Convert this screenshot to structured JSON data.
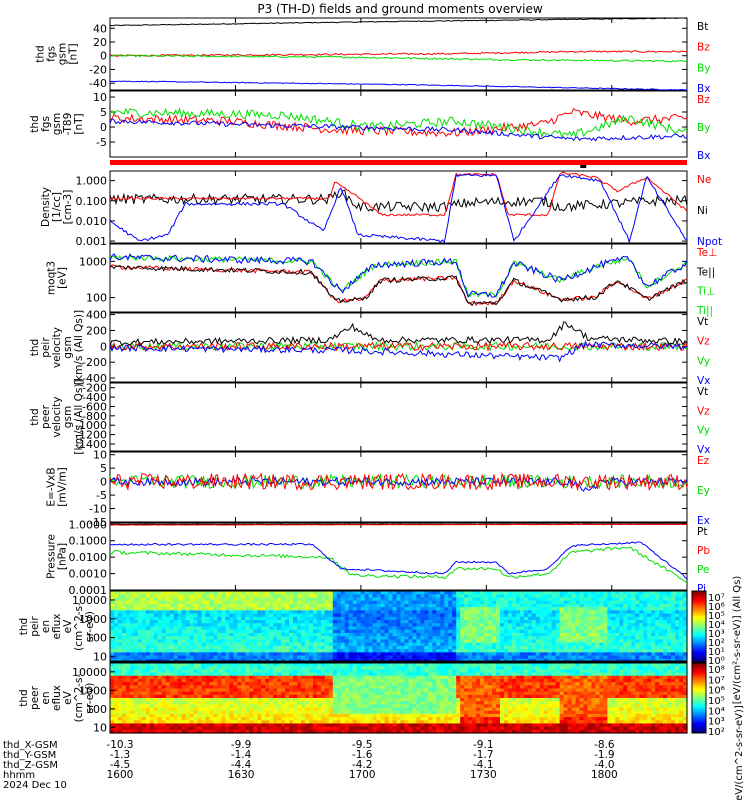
{
  "title": "P3 (TH-D) fields and ground moments overview",
  "colors": {
    "black": "#000000",
    "red": "#ff0000",
    "green": "#00e000",
    "blue": "#0000ff",
    "blue_dark": "#0000cc",
    "status_bar": "#ff0000"
  },
  "panels": [
    {
      "id": "fgs",
      "ylabel": [
        "thd",
        "fgs",
        "gsm",
        "[nT]"
      ],
      "ylim": [
        -50,
        55
      ],
      "ticks": [
        {
          "v": 40,
          "t": "40"
        },
        {
          "v": 20,
          "t": "20"
        },
        {
          "v": 0,
          "t": "0"
        },
        {
          "v": -20,
          "t": "-20"
        },
        {
          "v": -40,
          "t": "-40"
        }
      ],
      "legend": [
        {
          "t": "Bt",
          "c": "black"
        },
        {
          "t": "Bz",
          "c": "red"
        },
        {
          "t": "By",
          "c": "green"
        },
        {
          "t": "Bx",
          "c": "blue"
        }
      ]
    },
    {
      "id": "fgs_dc",
      "ylabel": [
        "thd",
        "fgs",
        "gsm",
        "-T89",
        "[nT]"
      ],
      "ylim": [
        -10,
        12
      ],
      "ticks": [
        {
          "v": 10,
          "t": "10"
        },
        {
          "v": 5,
          "t": "5"
        },
        {
          "v": 0,
          "t": "0"
        },
        {
          "v": -5,
          "t": "-5"
        }
      ],
      "legend": [
        {
          "t": "Bz",
          "c": "red"
        },
        {
          "t": "By",
          "c": "green"
        },
        {
          "t": "Bx",
          "c": "blue"
        }
      ]
    },
    {
      "id": "density",
      "ylabel": [
        "Density",
        "[1/cc]",
        "[cm-3]"
      ],
      "ylim_log": [
        0.0008,
        3
      ],
      "ticks": [
        {
          "v": 1,
          "t": "1.000"
        },
        {
          "v": 0.1,
          "t": "0.100"
        },
        {
          "v": 0.01,
          "t": "0.010"
        },
        {
          "v": 0.001,
          "t": "0.001"
        }
      ],
      "legend": [
        {
          "t": "Ne",
          "c": "red"
        },
        {
          "t": "Ni",
          "c": "black"
        },
        {
          "t": "Npot",
          "c": "blue"
        }
      ]
    },
    {
      "id": "temperature",
      "ylabel": [
        "moqt3",
        "[eV]"
      ],
      "ylim_log": [
        40,
        3000
      ],
      "ticks": [
        {
          "v": 1000,
          "t": "1000"
        },
        {
          "v": 100,
          "t": "100"
        }
      ],
      "legend": [
        {
          "t": "Te⊥",
          "c": "red"
        },
        {
          "t": "Te||",
          "c": "black"
        },
        {
          "t": "Ti⊥",
          "c": "green"
        },
        {
          "t": "Ti||",
          "c": "green"
        }
      ]
    },
    {
      "id": "peir_velocity",
      "ylabel": [
        "thd",
        "peir",
        "velocity",
        "gsm",
        "[km/s (All Qs)]"
      ],
      "ylim": [
        -450,
        420
      ],
      "ticks": [
        {
          "v": 400,
          "t": "400"
        },
        {
          "v": 200,
          "t": "200"
        },
        {
          "v": 0,
          "t": "0"
        },
        {
          "v": -200,
          "t": "-200"
        },
        {
          "v": -400,
          "t": "-400"
        }
      ],
      "legend": [
        {
          "t": "Vt",
          "c": "black"
        },
        {
          "t": "Vz",
          "c": "red"
        },
        {
          "t": "Vy",
          "c": "green"
        },
        {
          "t": "Vx",
          "c": "blue"
        }
      ]
    },
    {
      "id": "peer_velocity",
      "ylabel": [
        "thd",
        "peer",
        "velocity",
        "gsm",
        "[km/s (All Qs)]"
      ],
      "ylim": [
        -1550,
        -100
      ],
      "ticks": [
        {
          "v": -200,
          "t": "-200"
        },
        {
          "v": -400,
          "t": "-400"
        },
        {
          "v": -600,
          "t": "-600"
        },
        {
          "v": -800,
          "t": "-800"
        },
        {
          "v": -1000,
          "t": "-1000"
        },
        {
          "v": -1200,
          "t": "-1200"
        },
        {
          "v": -1400,
          "t": "-1400"
        }
      ],
      "legend": [
        {
          "t": "Vt",
          "c": "black"
        },
        {
          "t": "Vz",
          "c": "red"
        },
        {
          "t": "Vy",
          "c": "green"
        },
        {
          "t": "Vx",
          "c": "blue"
        }
      ]
    },
    {
      "id": "efield",
      "ylabel": [
        "E=-VxB",
        "[mV/m]"
      ],
      "ylim": [
        -15,
        11
      ],
      "ticks": [
        {
          "v": 10,
          "t": "10"
        },
        {
          "v": 5,
          "t": "5"
        },
        {
          "v": 0,
          "t": "0"
        },
        {
          "v": -5,
          "t": "-5"
        },
        {
          "v": -10,
          "t": "-10"
        },
        {
          "v": -15,
          "t": "-15"
        }
      ],
      "legend": [
        {
          "t": "Ez",
          "c": "red"
        },
        {
          "t": "Ey",
          "c": "green"
        },
        {
          "t": "Ex",
          "c": "blue"
        }
      ]
    },
    {
      "id": "pressure",
      "ylabel": [
        "Pressure",
        "[nPa]"
      ],
      "ylim_log": [
        0.0001,
        1.2
      ],
      "ticks": [
        {
          "v": 1,
          "t": "1.0000"
        },
        {
          "v": 0.1,
          "t": "0.1000"
        },
        {
          "v": 0.01,
          "t": "0.0100"
        },
        {
          "v": 0.001,
          "t": "0.0010"
        },
        {
          "v": 0.0001,
          "t": "0.0001"
        }
      ],
      "legend": [
        {
          "t": "Pt",
          "c": "black"
        },
        {
          "t": "Pb",
          "c": "red"
        },
        {
          "t": "Pe",
          "c": "green"
        },
        {
          "t": "Pi",
          "c": "blue"
        }
      ]
    },
    {
      "id": "peir_spec",
      "ylabel": [
        "thd",
        "peir",
        "en",
        "eflux",
        "eV",
        "(cm^2-s-",
        "sr-eV)"
      ],
      "ylim_log": [
        5,
        30000
      ],
      "ticks": [
        {
          "v": 10000,
          "t": "10000"
        },
        {
          "v": 1000,
          "t": "1000"
        },
        {
          "v": 100,
          "t": "100"
        },
        {
          "v": 10,
          "t": "10"
        }
      ],
      "colorbar": [
        "10⁷",
        "10⁶",
        "10⁵",
        "10⁴",
        "10³",
        "10²",
        "10¹",
        "10⁰"
      ]
    },
    {
      "id": "peer_spec",
      "ylabel": [
        "thd",
        "peer",
        "en",
        "eflux",
        "eV",
        "(cm^2-s-",
        "sr-eV)"
      ],
      "ylim_log": [
        5,
        30000
      ],
      "ticks": [
        {
          "v": 10000,
          "t": "10000"
        },
        {
          "v": 1000,
          "t": "1000"
        },
        {
          "v": 100,
          "t": "100"
        },
        {
          "v": 10,
          "t": "10"
        }
      ],
      "colorbar": [
        "10⁸",
        "10⁷",
        "10⁶",
        "10⁵",
        "10⁴",
        "10³",
        "10²"
      ]
    }
  ],
  "colorbar_unit": "[eV/(cm²-s-sr-eV)] (All Qs)",
  "colorbar_unit_bottom": "[eV/(cm^2-s-sr-eV)]",
  "xaxis": {
    "row_labels": [
      "thd_X-GSM",
      "thd_Y-GSM",
      "thd_Z-GSM",
      "hhmm",
      "2024 Dec 10"
    ],
    "ticks": [
      {
        "frac": 0.0,
        "x": "-10.3",
        "y": "-1.3",
        "z": "-4.5",
        "t": "1600"
      },
      {
        "frac": 0.2174,
        "x": "-9.9",
        "y": "-1.4",
        "z": "-4.4",
        "t": "1630"
      },
      {
        "frac": 0.4348,
        "x": "-9.5",
        "y": "-1.6",
        "z": "-4.2",
        "t": "1700"
      },
      {
        "frac": 0.6522,
        "x": "-9.1",
        "y": "-1.7",
        "z": "-4.1",
        "t": "1730"
      },
      {
        "frac": 0.8696,
        "x": "-8.6",
        "y": "-1.9",
        "z": "-4.0",
        "t": "1800"
      }
    ]
  },
  "chart_data": [
    {
      "type": "line",
      "title": "thd fgs gsm",
      "series": [
        {
          "name": "Bt",
          "values_hint": "rises from ~45 to ~55 nT"
        },
        {
          "name": "Bz",
          "values_hint": "~0 to +5 nT"
        },
        {
          "name": "By",
          "values_hint": "~0 to -10 nT"
        },
        {
          "name": "Bx",
          "values_hint": "~-38 to -50 nT"
        }
      ],
      "x": [
        "1600",
        "1630",
        "1700",
        "1730",
        "1800"
      ],
      "ylim": [
        -50,
        55
      ]
    },
    {
      "type": "line",
      "title": "thd fgs gsm -T89",
      "series": [
        {
          "name": "Bz"
        },
        {
          "name": "By"
        },
        {
          "name": "Bx"
        }
      ],
      "ylim": [
        -10,
        12
      ]
    },
    {
      "type": "line",
      "title": "Density",
      "log_y": true,
      "series": [
        {
          "name": "Ne"
        },
        {
          "name": "Ni"
        },
        {
          "name": "Npot"
        }
      ]
    },
    {
      "type": "line",
      "title": "moqt3",
      "log_y": true,
      "series": [
        {
          "name": "Te⊥"
        },
        {
          "name": "Te||"
        },
        {
          "name": "Ti⊥"
        },
        {
          "name": "Ti||"
        }
      ]
    },
    {
      "type": "line",
      "title": "thd peir velocity gsm",
      "series": [
        {
          "name": "Vt"
        },
        {
          "name": "Vz"
        },
        {
          "name": "Vy"
        },
        {
          "name": "Vx"
        }
      ]
    },
    {
      "type": "line",
      "title": "thd peer velocity gsm",
      "series": [
        {
          "name": "Vt"
        },
        {
          "name": "Vz"
        },
        {
          "name": "Vy"
        },
        {
          "name": "Vx"
        }
      ]
    },
    {
      "type": "line",
      "title": "E=-VxB",
      "series": [
        {
          "name": "Ez"
        },
        {
          "name": "Ey"
        },
        {
          "name": "Ex"
        }
      ]
    },
    {
      "type": "line",
      "title": "Pressure",
      "log_y": true,
      "series": [
        {
          "name": "Pt"
        },
        {
          "name": "Pb"
        },
        {
          "name": "Pe"
        },
        {
          "name": "Pi"
        }
      ]
    },
    {
      "type": "heatmap",
      "title": "thd peir en eflux"
    },
    {
      "type": "heatmap",
      "title": "thd peer en eflux"
    }
  ]
}
